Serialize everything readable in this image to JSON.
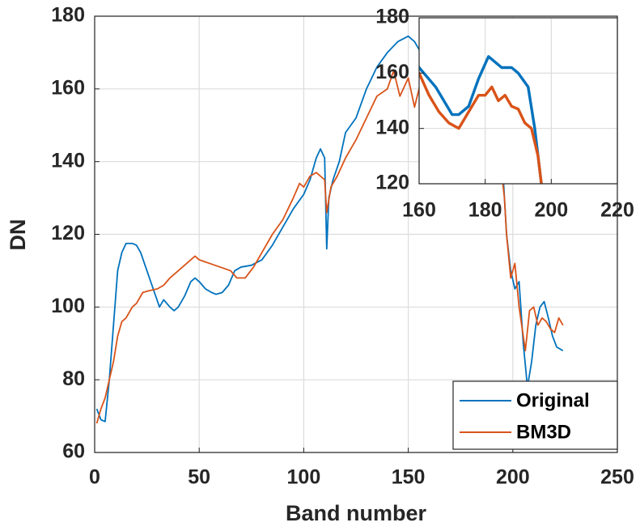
{
  "chart_data": {
    "type": "line",
    "x_label": "Band number",
    "y_label": "DN",
    "xlim": [
      0,
      250
    ],
    "ylim": [
      60,
      180
    ],
    "xticks": [
      0,
      50,
      100,
      150,
      200,
      250
    ],
    "yticks": [
      60,
      80,
      100,
      120,
      140,
      160,
      180
    ],
    "grid": true,
    "legend": "southeast",
    "series": [
      {
        "name": "Original",
        "color": "#0072BD",
        "x": [
          1,
          3,
          5,
          7,
          9,
          11,
          13,
          15,
          18,
          20,
          22,
          25,
          28,
          31,
          33,
          36,
          38,
          40,
          43,
          46,
          48,
          50,
          53,
          56,
          58,
          61,
          64,
          67,
          70,
          75,
          80,
          85,
          90,
          95,
          100,
          103,
          106,
          108,
          110,
          111,
          112,
          114,
          117,
          120,
          125,
          130,
          135,
          140,
          145,
          150,
          153,
          156,
          160,
          165,
          170,
          172,
          175,
          178,
          181,
          183,
          185,
          188,
          190,
          193,
          195,
          197,
          199,
          201,
          203,
          205,
          207,
          209,
          211,
          213,
          215,
          217,
          219,
          221,
          224
        ],
        "values": [
          72,
          69,
          68.5,
          80,
          95,
          110,
          115,
          117.5,
          117.5,
          117,
          115,
          110,
          105,
          100,
          102,
          100,
          99,
          100,
          103,
          107,
          108,
          107,
          105,
          104,
          103.5,
          104,
          106,
          110,
          111,
          111.5,
          113,
          117,
          122,
          127,
          131,
          135,
          141,
          143.5,
          141,
          116,
          130,
          135,
          140,
          148,
          152,
          160,
          166,
          170,
          173,
          174.5,
          173,
          170,
          162,
          155,
          145,
          145,
          148,
          158,
          166,
          164,
          162,
          162,
          160,
          155,
          140,
          120,
          110,
          105,
          107,
          90,
          78,
          85,
          95,
          100,
          101.5,
          97,
          92,
          89,
          88
        ]
      },
      {
        "name": "BM3D",
        "color": "#D95319",
        "x": [
          1,
          3,
          5,
          7,
          9,
          11,
          13,
          15,
          18,
          20,
          23,
          26,
          30,
          33,
          36,
          40,
          44,
          48,
          50,
          55,
          60,
          65,
          68,
          72,
          76,
          80,
          85,
          90,
          95,
          98,
          100,
          103,
          106,
          108,
          110,
          111,
          113,
          116,
          120,
          125,
          130,
          135,
          140,
          143,
          146,
          150,
          153,
          156,
          160,
          163,
          166,
          169,
          172,
          175,
          178,
          180,
          182,
          184,
          186,
          188,
          190,
          192,
          194,
          196,
          197,
          199,
          201,
          203,
          205,
          206,
          208,
          210,
          212,
          214,
          216,
          218,
          220,
          222,
          224
        ],
        "values": [
          68,
          72,
          75,
          80,
          85,
          92,
          96,
          97,
          100,
          101,
          104,
          104.5,
          105,
          106,
          108,
          110,
          112,
          114,
          113,
          112,
          111,
          110,
          108,
          108,
          111,
          115,
          120,
          124,
          130,
          134,
          133,
          136,
          137,
          136,
          135,
          126,
          133,
          136,
          141,
          146,
          152,
          158,
          160,
          165,
          158,
          163,
          155,
          162,
          160,
          152,
          146,
          142,
          140,
          146,
          152,
          152,
          155,
          150,
          152,
          148,
          147,
          142,
          140,
          130,
          120,
          108,
          112,
          100,
          92,
          88,
          99,
          100,
          95,
          97,
          96,
          94,
          93,
          97,
          95
        ]
      }
    ],
    "inset": {
      "xlim": [
        160,
        220
      ],
      "ylim": [
        120,
        180
      ],
      "xticks": [
        160,
        180,
        200,
        220
      ],
      "yticks": [
        120,
        140,
        160,
        180
      ]
    }
  }
}
